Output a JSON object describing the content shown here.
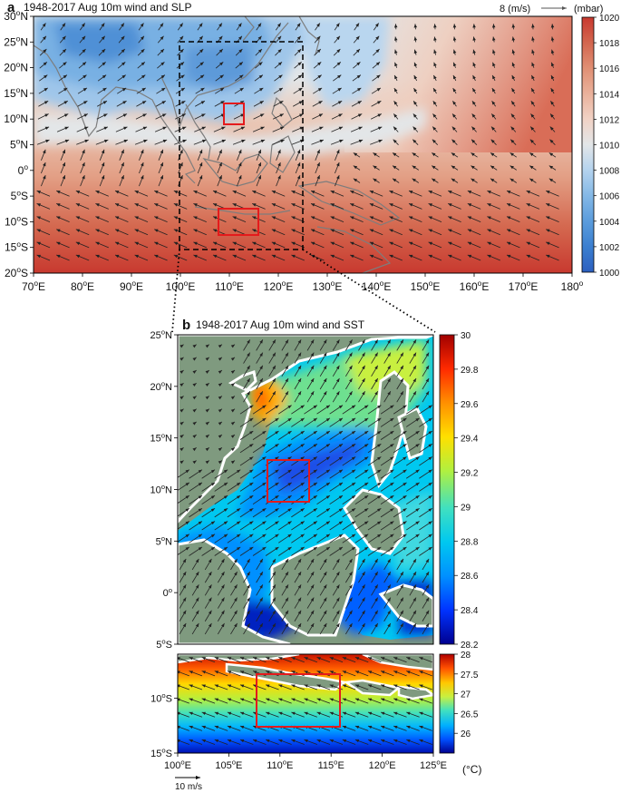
{
  "colors": {
    "ocean_default": "#e4e6e8",
    "land_b": "#7f9a7f",
    "frame": "#000000",
    "highlight_box": "#e41a1c",
    "study_box": "#000000",
    "arrow": "#222222"
  },
  "chart_data": [
    {
      "type": "heatmap",
      "panel_letter": "a",
      "title": "1948-2017 Aug 10m wind and SLP",
      "xlabel": "",
      "ylabel": "",
      "x_ticks": [
        {
          "value": 70,
          "label": "70°E"
        },
        {
          "value": 80,
          "label": "80°E"
        },
        {
          "value": 90,
          "label": "90°E"
        },
        {
          "value": 100,
          "label": "100°E"
        },
        {
          "value": 110,
          "label": "110°E"
        },
        {
          "value": 120,
          "label": "120°E"
        },
        {
          "value": 130,
          "label": "130°E"
        },
        {
          "value": 140,
          "label": "140°E"
        },
        {
          "value": 150,
          "label": "150°E"
        },
        {
          "value": 160,
          "label": "160°E"
        },
        {
          "value": 170,
          "label": "170°E"
        },
        {
          "value": 180,
          "label": "180°"
        }
      ],
      "y_ticks": [
        {
          "value": 30,
          "label": "30°N"
        },
        {
          "value": 25,
          "label": "25°N"
        },
        {
          "value": 20,
          "label": "20°N"
        },
        {
          "value": 15,
          "label": "15°N"
        },
        {
          "value": 10,
          "label": "10°N"
        },
        {
          "value": 5,
          "label": "5°N"
        },
        {
          "value": 0,
          "label": "0°"
        },
        {
          "value": -5,
          "label": "5°S"
        },
        {
          "value": -10,
          "label": "10°S"
        },
        {
          "value": -15,
          "label": "15°S"
        },
        {
          "value": -20,
          "label": "20°S"
        }
      ],
      "xlim": [
        70,
        180
      ],
      "ylim": [
        -20,
        30
      ],
      "grid": false,
      "colorbar": {
        "unit": "(mbar)",
        "min": 1000,
        "max": 1020,
        "ticks": [
          1000,
          1002,
          1004,
          1006,
          1008,
          1010,
          1012,
          1014,
          1016,
          1018,
          1020
        ],
        "colors": [
          "#2c5fbf",
          "#3b7fd0",
          "#5b9cdc",
          "#84b8e6",
          "#b4d3ee",
          "#e3e6e8",
          "#f1d2c5",
          "#eab19b",
          "#e08f74",
          "#d3664f",
          "#c8392f"
        ]
      },
      "reference_vector": {
        "label": "8 (m/s)",
        "speed": 8
      },
      "vector_field": {
        "description": "Southerly/southwesterly monsoon flow north of equator; southeasterly trades south of equator",
        "sample_grid": {
          "lon_start": 72,
          "lon_end": 178,
          "lon_step": 4,
          "lat_start": 28,
          "lat_end": -18,
          "lat_step": 2.5
        }
      },
      "regions": [
        {
          "name": "South China Sea box",
          "lon_min": 100,
          "lon_max": 125,
          "lat_min": -15,
          "lat_max": 25,
          "style": "dashed"
        },
        {
          "name": "SCS upwelling box",
          "lon_min": 108.5,
          "lon_max": 112.5,
          "lat_min": 9,
          "lat_max": 13,
          "style": "red"
        },
        {
          "name": "Java box",
          "lon_min": 108,
          "lon_max": 116,
          "lat_min": -12,
          "lat_max": -7,
          "style": "red"
        }
      ]
    },
    {
      "type": "heatmap",
      "panel_letter": "b",
      "title": "1948-2017  Aug 10m wind and SST",
      "xlabel": "",
      "ylabel": "",
      "x_ticks": [
        {
          "value": 100,
          "label": "100°E"
        },
        {
          "value": 105,
          "label": "105°E"
        },
        {
          "value": 110,
          "label": "110°E"
        },
        {
          "value": 115,
          "label": "115°E"
        },
        {
          "value": 120,
          "label": "120°E"
        },
        {
          "value": 125,
          "label": "125°E"
        }
      ],
      "y_ticks_top": [
        {
          "value": 25,
          "label": "25°N"
        },
        {
          "value": 20,
          "label": "20°N"
        },
        {
          "value": 15,
          "label": "15°N"
        },
        {
          "value": 10,
          "label": "10°N"
        },
        {
          "value": 5,
          "label": "5°N"
        },
        {
          "value": 0,
          "label": "0°"
        },
        {
          "value": -5,
          "label": "5°S"
        }
      ],
      "y_ticks_bottom": [
        {
          "value": -10,
          "label": "10°S"
        },
        {
          "value": -15,
          "label": "15°S"
        }
      ],
      "xlim": [
        100,
        125
      ],
      "ylim_top": [
        -5,
        25
      ],
      "ylim_bottom": [
        -15,
        -6
      ],
      "grid": false,
      "colorbar_top": {
        "min": 28.2,
        "max": 30,
        "ticks": [
          28.2,
          28.4,
          28.6,
          28.8,
          29,
          29.2,
          29.4,
          29.6,
          29.8,
          30
        ],
        "tick_labels": [
          "28.2",
          "28.4",
          "28.6",
          "28.8",
          "29",
          "29.2",
          "29.4",
          "29.6",
          "29.8",
          "30"
        ],
        "colors": [
          "#00008f",
          "#0033ff",
          "#0090ff",
          "#00c8f0",
          "#40e0c0",
          "#b0f040",
          "#ffe000",
          "#ff9000",
          "#ff2a00",
          "#a00000"
        ]
      },
      "colorbar_bottom": {
        "min": 25.5,
        "max": 28,
        "ticks": [
          26,
          26.5,
          27,
          27.5,
          28
        ],
        "tick_labels": [
          "26",
          "26.5",
          "27",
          "27.5",
          "28"
        ],
        "colors": [
          "#00008f",
          "#0050ff",
          "#00b0ff",
          "#40e0c0",
          "#c8f040",
          "#ffc800",
          "#ff5000",
          "#b00000"
        ]
      },
      "colorbar_unit": "(°C)",
      "reference_vector": {
        "label": "10 m/s",
        "speed": 10
      },
      "regions": [
        {
          "name": "SCS upwelling box",
          "lon_min": 108.5,
          "lon_max": 112.5,
          "lat_min": 9,
          "lat_max": 13,
          "style": "red"
        },
        {
          "name": "Java box",
          "lon_min": 108,
          "lon_max": 116,
          "lat_min": -12,
          "lat_max": -7,
          "style": "red"
        }
      ]
    }
  ]
}
